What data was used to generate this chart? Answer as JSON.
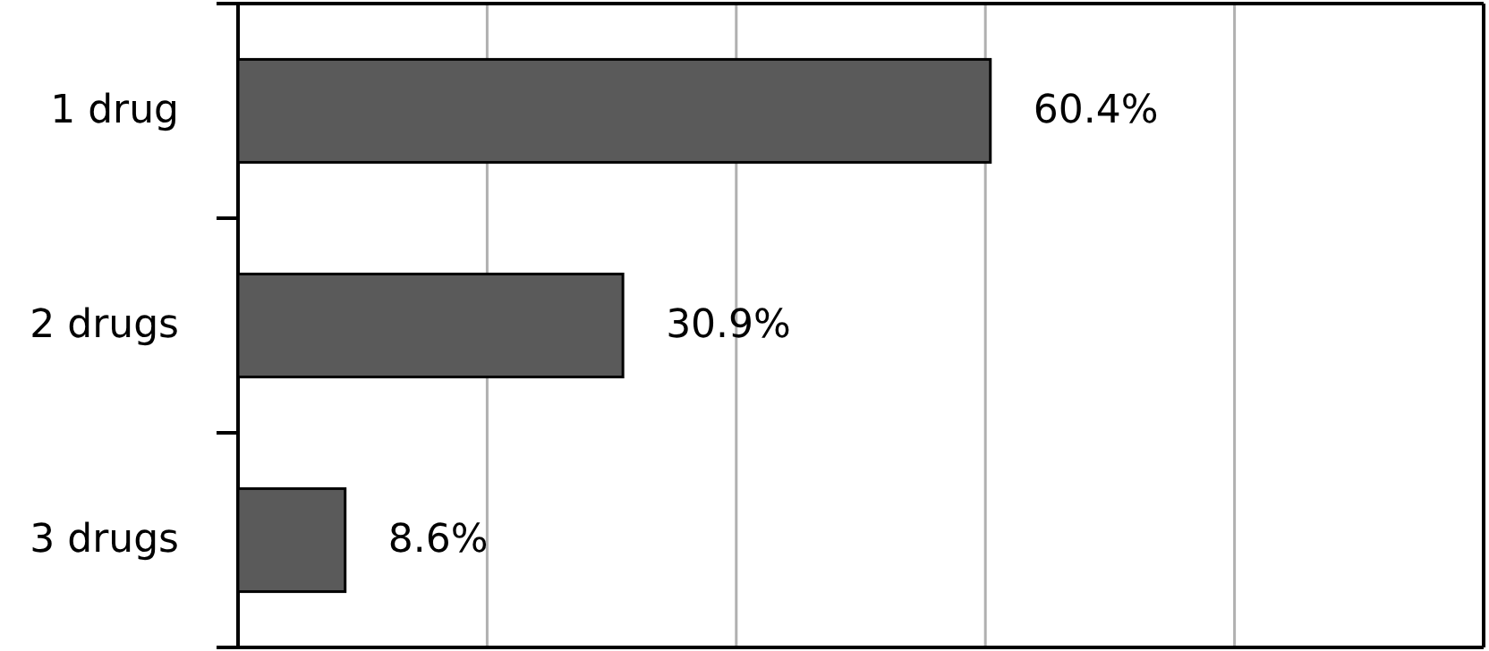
{
  "chart_data": {
    "type": "bar",
    "orientation": "horizontal",
    "categories": [
      "1 drug",
      "2 drugs",
      "3 drugs"
    ],
    "values": [
      60.4,
      30.9,
      8.6
    ],
    "value_labels": [
      "60.4%",
      "30.9%",
      "8.6%"
    ],
    "color": "#5a5a5a",
    "xlim": [
      0,
      100
    ],
    "xticks": [
      {
        "value": 0,
        "label": null
      },
      {
        "value": 20,
        "label": null
      },
      {
        "value": 40,
        "label": null
      },
      {
        "value": 60,
        "label": null
      },
      {
        "value": 80,
        "label": null
      },
      {
        "value": 100,
        "label": null
      }
    ],
    "grid": "x",
    "tick_labels": "y"
  }
}
